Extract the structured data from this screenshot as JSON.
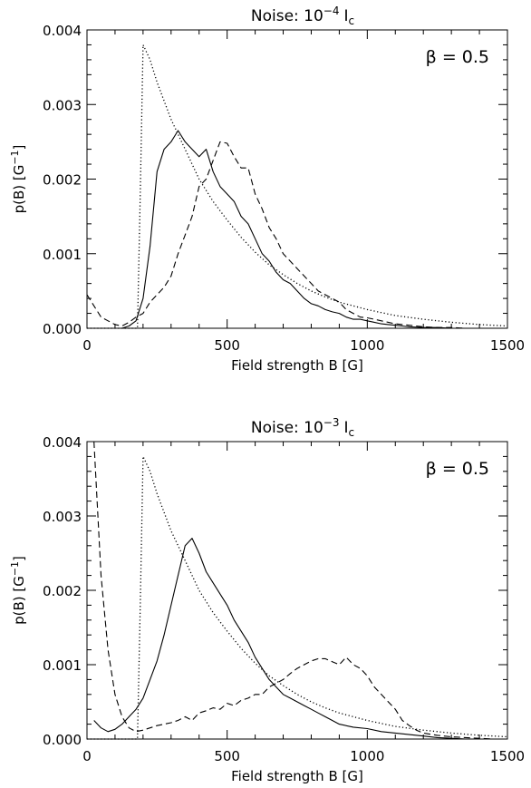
{
  "chart_data": [
    {
      "type": "line",
      "title": "Noise: 10",
      "title_exp": "−4",
      "title_tail": "I",
      "title_sub": "c",
      "annotation": "β = 0.5",
      "xlabel": "Field strength B [G]",
      "ylabel": "p(B) [G",
      "ylabel_exp": "−1",
      "ylabel_tail": "]",
      "xlim": [
        0,
        1500
      ],
      "ylim": [
        0,
        0.004
      ],
      "xticks": [
        0,
        500,
        1000,
        1500
      ],
      "xtick_labels": [
        "0",
        "500",
        "1000",
        "1500"
      ],
      "yticks": [
        0,
        0.001,
        0.002,
        0.003,
        0.004
      ],
      "ytick_labels": [
        "0.000",
        "0.001",
        "0.002",
        "0.003",
        "0.004"
      ],
      "grid": false,
      "series": [
        {
          "style": "solid",
          "x": [
            25,
            75,
            125,
            150,
            175,
            200,
            225,
            250,
            275,
            300,
            325,
            350,
            375,
            400,
            425,
            450,
            475,
            500,
            525,
            550,
            575,
            600,
            625,
            650,
            675,
            700,
            725,
            750,
            775,
            800,
            825,
            850,
            875,
            900,
            925,
            950,
            975,
            1000,
            1025,
            1050,
            1075,
            1100,
            1125,
            1150,
            1200,
            1250,
            1300,
            1350,
            1400,
            1450,
            1500
          ],
          "y": [
            0,
            0,
            0,
            3e-05,
            0.0001,
            0.0004,
            0.0011,
            0.0021,
            0.0024,
            0.0025,
            0.00265,
            0.0025,
            0.0024,
            0.0023,
            0.0024,
            0.0021,
            0.0019,
            0.0018,
            0.0017,
            0.0015,
            0.0014,
            0.0012,
            0.001,
            0.0009,
            0.00075,
            0.00065,
            0.0006,
            0.0005,
            0.0004,
            0.00033,
            0.0003,
            0.00025,
            0.00022,
            0.0002,
            0.00015,
            0.00012,
            0.00012,
            0.0001,
            8e-05,
            6e-05,
            5e-05,
            4e-05,
            3e-05,
            2e-05,
            1e-05,
            1e-05,
            0,
            0,
            0,
            0,
            0
          ]
        },
        {
          "style": "dashed",
          "x": [
            0,
            25,
            50,
            75,
            100,
            125,
            150,
            175,
            200,
            225,
            250,
            275,
            300,
            325,
            350,
            375,
            400,
            425,
            450,
            475,
            500,
            525,
            550,
            575,
            600,
            625,
            650,
            675,
            700,
            725,
            750,
            775,
            800,
            825,
            850,
            875,
            900,
            925,
            950,
            975,
            1000,
            1025,
            1050,
            1075,
            1100,
            1125,
            1150,
            1175,
            1200,
            1250,
            1300,
            1350,
            1400,
            1450,
            1500
          ],
          "y": [
            0.00045,
            0.0003,
            0.00015,
            0.0001,
            5e-05,
            3e-05,
            8e-05,
            0.00015,
            0.0002,
            0.00035,
            0.00045,
            0.00055,
            0.0007,
            0.001,
            0.00125,
            0.0015,
            0.0019,
            0.002,
            0.00225,
            0.0025,
            0.00248,
            0.0023,
            0.00215,
            0.00215,
            0.0018,
            0.0016,
            0.00135,
            0.0012,
            0.001,
            0.0009,
            0.0008,
            0.0007,
            0.0006,
            0.0005,
            0.00045,
            0.0004,
            0.00035,
            0.00025,
            0.0002,
            0.00015,
            0.00014,
            0.00012,
            0.0001,
            8e-05,
            6e-05,
            5e-05,
            4e-05,
            3e-05,
            2e-05,
            1e-05,
            1e-05,
            0,
            0,
            0,
            0
          ]
        },
        {
          "style": "dotted",
          "x": [
            0,
            100,
            180,
            190,
            200,
            225,
            250,
            300,
            350,
            400,
            450,
            500,
            550,
            600,
            650,
            700,
            750,
            800,
            850,
            900,
            950,
            1000,
            1100,
            1200,
            1300,
            1400,
            1500
          ],
          "y": [
            0,
            0,
            0,
            0.0018,
            0.0038,
            0.0036,
            0.0033,
            0.0028,
            0.0024,
            0.002,
            0.0017,
            0.00145,
            0.00122,
            0.00102,
            0.00085,
            0.00072,
            0.0006,
            0.0005,
            0.00042,
            0.00035,
            0.0003,
            0.00025,
            0.00017,
            0.00012,
            8e-05,
            5e-05,
            3e-05
          ]
        }
      ]
    },
    {
      "type": "line",
      "title": "Noise: 10",
      "title_exp": "−3",
      "title_tail": "I",
      "title_sub": "c",
      "annotation": "β = 0.5",
      "xlabel": "Field strength B [G]",
      "ylabel": "p(B) [G",
      "ylabel_exp": "−1",
      "ylabel_tail": "]",
      "xlim": [
        0,
        1500
      ],
      "ylim": [
        0,
        0.004
      ],
      "xticks": [
        0,
        500,
        1000,
        1500
      ],
      "xtick_labels": [
        "0",
        "500",
        "1000",
        "1500"
      ],
      "yticks": [
        0,
        0.001,
        0.002,
        0.003,
        0.004
      ],
      "ytick_labels": [
        "0.000",
        "0.001",
        "0.002",
        "0.003",
        "0.004"
      ],
      "grid": false,
      "series": [
        {
          "style": "solid",
          "x": [
            25,
            50,
            75,
            100,
            125,
            150,
            175,
            200,
            225,
            250,
            275,
            300,
            325,
            350,
            375,
            400,
            425,
            450,
            475,
            500,
            525,
            550,
            575,
            600,
            625,
            650,
            675,
            700,
            725,
            750,
            775,
            800,
            825,
            850,
            875,
            900,
            950,
            1000,
            1050,
            1100,
            1150,
            1200,
            1250,
            1300,
            1350,
            1400,
            1450,
            1500
          ],
          "y": [
            0.00025,
            0.00015,
            0.0001,
            0.00013,
            0.0002,
            0.0003,
            0.0004,
            0.00055,
            0.0008,
            0.00105,
            0.0014,
            0.0018,
            0.0022,
            0.0026,
            0.0027,
            0.0025,
            0.00225,
            0.0021,
            0.00195,
            0.0018,
            0.0016,
            0.00145,
            0.0013,
            0.0011,
            0.00095,
            0.0008,
            0.0007,
            0.0006,
            0.00055,
            0.0005,
            0.00045,
            0.0004,
            0.00035,
            0.0003,
            0.00025,
            0.0002,
            0.00016,
            0.00014,
            0.0001,
            8e-05,
            6e-05,
            4e-05,
            2e-05,
            1e-05,
            0,
            0,
            0,
            0
          ]
        },
        {
          "style": "dashed",
          "x": [
            25,
            50,
            75,
            100,
            125,
            150,
            175,
            200,
            225,
            250,
            275,
            300,
            325,
            350,
            375,
            400,
            425,
            450,
            475,
            500,
            525,
            550,
            575,
            600,
            625,
            650,
            675,
            700,
            725,
            750,
            775,
            800,
            825,
            850,
            875,
            900,
            925,
            950,
            975,
            1000,
            1025,
            1050,
            1075,
            1100,
            1125,
            1150,
            1175,
            1200,
            1250,
            1300,
            1350,
            1400,
            1450,
            1500
          ],
          "y": [
            0.004,
            0.0022,
            0.0012,
            0.0006,
            0.0003,
            0.00015,
            0.0001,
            0.00012,
            0.00015,
            0.00018,
            0.0002,
            0.00022,
            0.00025,
            0.0003,
            0.00025,
            0.00035,
            0.00038,
            0.00042,
            0.0004,
            0.00048,
            0.00045,
            0.00052,
            0.00055,
            0.0006,
            0.0006,
            0.0007,
            0.00075,
            0.0008,
            0.00088,
            0.00095,
            0.001,
            0.00105,
            0.00108,
            0.00108,
            0.00104,
            0.001,
            0.0011,
            0.001,
            0.00095,
            0.00085,
            0.0007,
            0.0006,
            0.0005,
            0.0004,
            0.00025,
            0.00018,
            0.00012,
            8e-05,
            5e-05,
            3e-05,
            2e-05,
            1e-05,
            0,
            0
          ]
        },
        {
          "style": "dotted",
          "x": [
            0,
            100,
            180,
            190,
            200,
            225,
            250,
            300,
            350,
            400,
            450,
            500,
            550,
            600,
            650,
            700,
            750,
            800,
            850,
            900,
            950,
            1000,
            1100,
            1200,
            1300,
            1400,
            1500
          ],
          "y": [
            0,
            0,
            0,
            0.0018,
            0.0038,
            0.0036,
            0.0033,
            0.0028,
            0.0024,
            0.002,
            0.0017,
            0.00145,
            0.00122,
            0.00102,
            0.00085,
            0.00072,
            0.0006,
            0.0005,
            0.00042,
            0.00035,
            0.0003,
            0.00025,
            0.00017,
            0.00012,
            8e-05,
            5e-05,
            3e-05
          ]
        }
      ]
    }
  ]
}
